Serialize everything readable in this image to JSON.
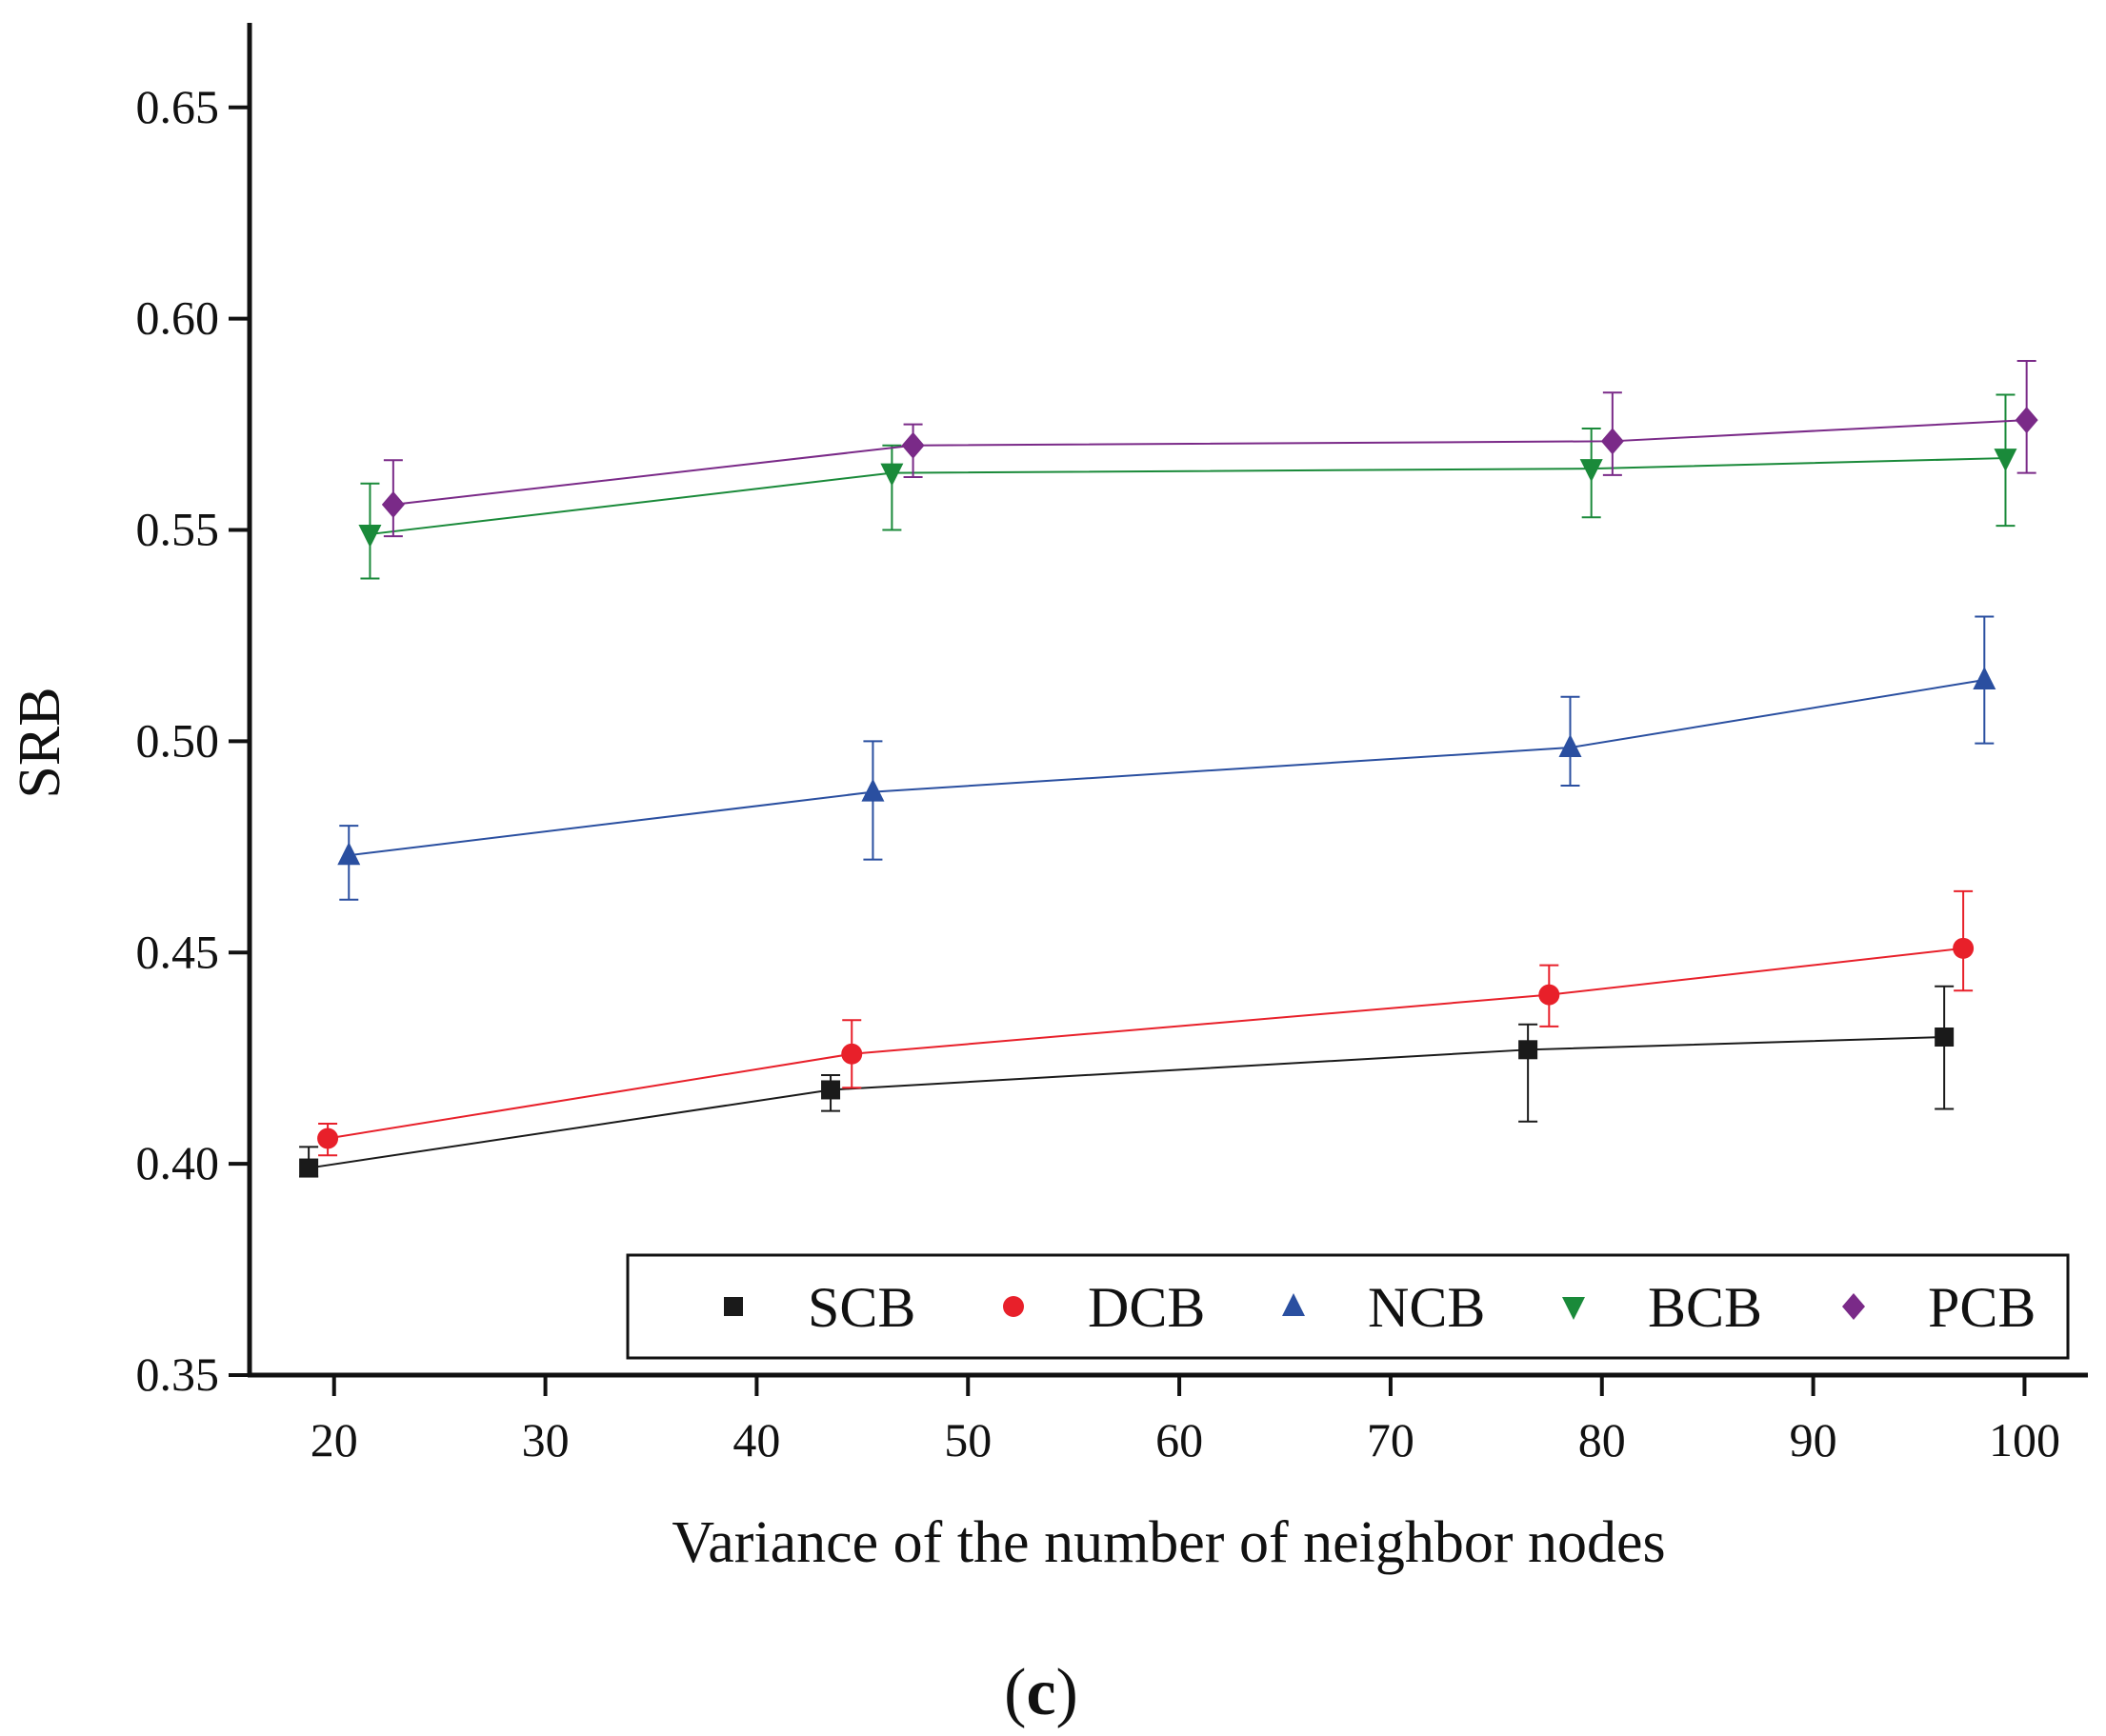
{
  "chart_data": {
    "type": "line",
    "title": "",
    "xlabel": "Variance of the number of neighbor nodes",
    "ylabel": "SRB",
    "caption": {
      "open": "(",
      "letter": "c",
      "close": ")"
    },
    "xlim": [
      16,
      103
    ],
    "ylim": [
      0.35,
      0.67
    ],
    "xticks": [
      20,
      30,
      40,
      50,
      60,
      70,
      80,
      90,
      100
    ],
    "xtick_labels": [
      "20",
      "30",
      "40",
      "50",
      "60",
      "70",
      "80",
      "90",
      "100"
    ],
    "yticks": [
      0.35,
      0.4,
      0.45,
      0.5,
      0.55,
      0.6,
      0.65
    ],
    "ytick_labels": [
      "0.35",
      "0.40",
      "0.45",
      "0.50",
      "0.55",
      "0.60",
      "0.65"
    ],
    "legend_position": "bottom-right",
    "series": [
      {
        "name": "SCB",
        "color": "#1a1a1a",
        "marker": "square",
        "x": [
          18.8,
          43.5,
          76.5,
          96.2
        ],
        "y": [
          0.399,
          0.4175,
          0.427,
          0.43
        ],
        "err_low": [
          0.002,
          0.005,
          0.017,
          0.017
        ],
        "err_high": [
          0.005,
          0.0035,
          0.006,
          0.012
        ]
      },
      {
        "name": "DCB",
        "color": "#e8202a",
        "marker": "circle",
        "x": [
          19.7,
          44.5,
          77.5,
          97.1
        ],
        "y": [
          0.406,
          0.426,
          0.44,
          0.451
        ],
        "err_low": [
          0.004,
          0.008,
          0.0075,
          0.01
        ],
        "err_high": [
          0.0035,
          0.008,
          0.007,
          0.0135
        ]
      },
      {
        "name": "NCB",
        "color": "#2a4fa0",
        "marker": "triangle-up",
        "x": [
          20.7,
          45.5,
          78.5,
          98.1
        ],
        "y": [
          0.473,
          0.488,
          0.4985,
          0.5145
        ],
        "err_low": [
          0.0105,
          0.016,
          0.009,
          0.015
        ],
        "err_high": [
          0.007,
          0.012,
          0.012,
          0.015
        ]
      },
      {
        "name": "BCB",
        "color": "#1a8a3a",
        "marker": "triangle-down",
        "x": [
          21.7,
          46.4,
          79.5,
          99.1
        ],
        "y": [
          0.549,
          0.5635,
          0.5645,
          0.567
        ],
        "err_low": [
          0.0105,
          0.0135,
          0.0115,
          0.016
        ],
        "err_high": [
          0.012,
          0.0065,
          0.0095,
          0.015
        ]
      },
      {
        "name": "PCB",
        "color": "#7a2a88",
        "marker": "diamond",
        "x": [
          22.8,
          47.4,
          80.5,
          100.1
        ],
        "y": [
          0.556,
          0.57,
          0.571,
          0.576
        ],
        "err_low": [
          0.0075,
          0.0075,
          0.008,
          0.0125
        ],
        "err_high": [
          0.0105,
          0.005,
          0.0115,
          0.014
        ]
      }
    ]
  }
}
